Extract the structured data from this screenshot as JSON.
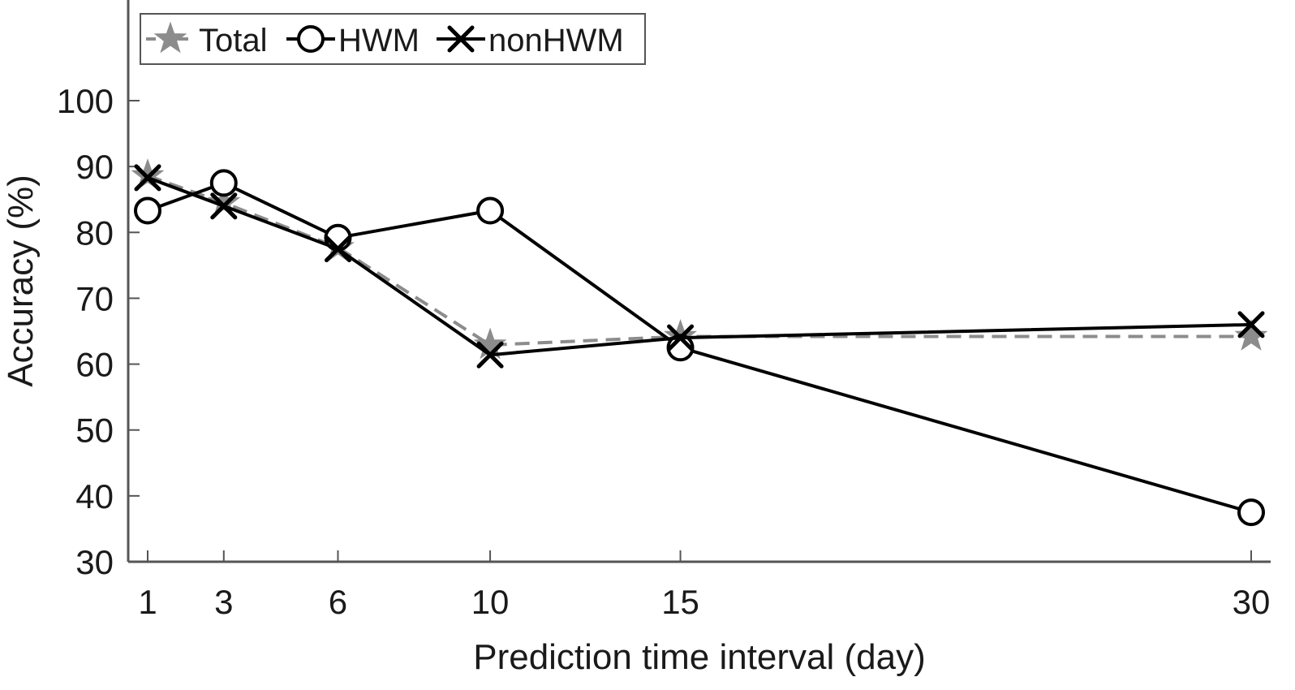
{
  "chart_data": {
    "type": "line",
    "xlabel": "Prediction time interval (day)",
    "ylabel": "Accuracy (%)",
    "x": [
      1,
      3,
      6,
      10,
      15,
      30
    ],
    "x_ticks": [
      "1",
      "3",
      "6",
      "10",
      "15",
      "30"
    ],
    "y_ticks": [
      "30",
      "40",
      "50",
      "60",
      "70",
      "80",
      "90",
      "100"
    ],
    "xlim": [
      0.5,
      30.5
    ],
    "ylim": [
      30,
      115
    ],
    "grid": false,
    "legend_position": "top-left",
    "series": [
      {
        "name": "Total",
        "values": [
          88.6,
          84.5,
          77.7,
          62.9,
          64.2,
          64.2
        ],
        "color": "#8c8c8c",
        "line_style": "dashed",
        "marker": "star"
      },
      {
        "name": "HWM",
        "values": [
          83.3,
          87.5,
          79.2,
          83.3,
          62.5,
          37.5
        ],
        "color": "#000000",
        "line_style": "solid",
        "marker": "circle"
      },
      {
        "name": "nonHWM",
        "values": [
          88.3,
          84.0,
          77.5,
          61.4,
          64.0,
          66.0
        ],
        "color": "#000000",
        "line_style": "solid",
        "marker": "x"
      }
    ]
  }
}
